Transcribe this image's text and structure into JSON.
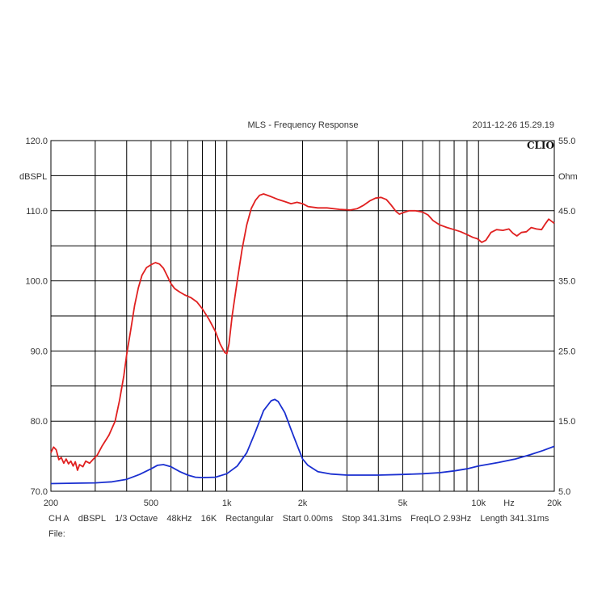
{
  "chart_data": {
    "type": "line",
    "title": "MLS - Frequency Response",
    "timestamp": "2011-12-26 15.29.19",
    "brand": "CLIO",
    "x_scale": "log",
    "xlim": [
      200,
      20000
    ],
    "x_ticks": [
      {
        "value": 200,
        "label": "200"
      },
      {
        "value": 500,
        "label": "500"
      },
      {
        "value": 1000,
        "label": "1k"
      },
      {
        "value": 2000,
        "label": "2k"
      },
      {
        "value": 5000,
        "label": "5k"
      },
      {
        "value": 10000,
        "label": "10k"
      },
      {
        "value": 20000,
        "label": "20k"
      }
    ],
    "x_unit": "Hz",
    "x_grid": [
      300,
      400,
      500,
      600,
      700,
      800,
      900,
      1000,
      2000,
      3000,
      4000,
      5000,
      6000,
      7000,
      8000,
      9000,
      10000
    ],
    "y_left": {
      "label": "dBSPL",
      "lim": [
        70,
        120
      ],
      "ticks": [
        {
          "value": 70,
          "label": "70.0"
        },
        {
          "value": 80,
          "label": "80.0"
        },
        {
          "value": 90,
          "label": "90.0"
        },
        {
          "value": 100,
          "label": "100.0"
        },
        {
          "value": 110,
          "label": "110.0"
        },
        {
          "value": 120,
          "label": "120.0"
        }
      ]
    },
    "y_right": {
      "label": "Ohm",
      "lim": [
        5,
        55
      ],
      "ticks": [
        {
          "value": 5,
          "label": "5.0"
        },
        {
          "value": 15,
          "label": "15.0"
        },
        {
          "value": 25,
          "label": "25.0"
        },
        {
          "value": 35,
          "label": "35.0"
        },
        {
          "value": 45,
          "label": "45.0"
        },
        {
          "value": 55,
          "label": "55.0"
        }
      ]
    },
    "y_grid_minor": 5,
    "grid": true,
    "series": [
      {
        "axis": "left",
        "color": "#e02020",
        "points": [
          [
            200,
            75.5
          ],
          [
            205,
            76.3
          ],
          [
            210,
            75.9
          ],
          [
            215,
            74.5
          ],
          [
            220,
            74.8
          ],
          [
            225,
            74.0
          ],
          [
            230,
            74.6
          ],
          [
            235,
            73.9
          ],
          [
            240,
            74.3
          ],
          [
            245,
            73.6
          ],
          [
            250,
            74.2
          ],
          [
            255,
            73.0
          ],
          [
            260,
            73.8
          ],
          [
            268,
            73.5
          ],
          [
            275,
            74.3
          ],
          [
            285,
            74.0
          ],
          [
            295,
            74.6
          ],
          [
            305,
            75.1
          ],
          [
            320,
            76.5
          ],
          [
            340,
            78.0
          ],
          [
            360,
            80.0
          ],
          [
            375,
            83.0
          ],
          [
            390,
            86.5
          ],
          [
            400,
            89.5
          ],
          [
            415,
            93.0
          ],
          [
            430,
            96.5
          ],
          [
            445,
            99.0
          ],
          [
            460,
            100.8
          ],
          [
            480,
            101.9
          ],
          [
            500,
            102.3
          ],
          [
            520,
            102.6
          ],
          [
            540,
            102.4
          ],
          [
            560,
            101.8
          ],
          [
            580,
            100.7
          ],
          [
            600,
            99.6
          ],
          [
            620,
            98.9
          ],
          [
            650,
            98.4
          ],
          [
            680,
            98.0
          ],
          [
            720,
            97.6
          ],
          [
            760,
            97.0
          ],
          [
            800,
            96.0
          ],
          [
            850,
            94.5
          ],
          [
            900,
            92.8
          ],
          [
            940,
            91.0
          ],
          [
            980,
            89.8
          ],
          [
            1000,
            89.6
          ],
          [
            1020,
            91.0
          ],
          [
            1050,
            95.0
          ],
          [
            1100,
            100.0
          ],
          [
            1150,
            104.5
          ],
          [
            1200,
            108.0
          ],
          [
            1250,
            110.3
          ],
          [
            1300,
            111.5
          ],
          [
            1350,
            112.2
          ],
          [
            1400,
            112.4
          ],
          [
            1500,
            112.0
          ],
          [
            1600,
            111.6
          ],
          [
            1700,
            111.3
          ],
          [
            1800,
            111.0
          ],
          [
            1900,
            111.2
          ],
          [
            2000,
            111.0
          ],
          [
            2100,
            110.6
          ],
          [
            2300,
            110.4
          ],
          [
            2500,
            110.4
          ],
          [
            2800,
            110.2
          ],
          [
            3100,
            110.1
          ],
          [
            3300,
            110.3
          ],
          [
            3500,
            110.8
          ],
          [
            3700,
            111.4
          ],
          [
            3900,
            111.8
          ],
          [
            4100,
            111.9
          ],
          [
            4300,
            111.6
          ],
          [
            4500,
            110.8
          ],
          [
            4700,
            109.9
          ],
          [
            4850,
            109.5
          ],
          [
            5000,
            109.7
          ],
          [
            5300,
            110.0
          ],
          [
            5600,
            110.0
          ],
          [
            6000,
            109.8
          ],
          [
            6300,
            109.4
          ],
          [
            6600,
            108.6
          ],
          [
            7000,
            108.0
          ],
          [
            7500,
            107.6
          ],
          [
            8000,
            107.3
          ],
          [
            8500,
            107.0
          ],
          [
            9000,
            106.6
          ],
          [
            9500,
            106.2
          ],
          [
            9900,
            106.0
          ],
          [
            10300,
            105.5
          ],
          [
            10700,
            105.8
          ],
          [
            11200,
            106.9
          ],
          [
            11800,
            107.3
          ],
          [
            12500,
            107.2
          ],
          [
            13200,
            107.4
          ],
          [
            13700,
            106.8
          ],
          [
            14200,
            106.4
          ],
          [
            14800,
            106.9
          ],
          [
            15500,
            107.0
          ],
          [
            16200,
            107.6
          ],
          [
            17000,
            107.4
          ],
          [
            17800,
            107.3
          ],
          [
            18400,
            108.1
          ],
          [
            19000,
            108.8
          ],
          [
            19500,
            108.5
          ],
          [
            20000,
            108.2
          ]
        ]
      },
      {
        "axis": "right",
        "color": "#1a2fd0",
        "points": [
          [
            200,
            6.1
          ],
          [
            250,
            6.15
          ],
          [
            300,
            6.2
          ],
          [
            350,
            6.35
          ],
          [
            400,
            6.7
          ],
          [
            450,
            7.4
          ],
          [
            500,
            8.2
          ],
          [
            530,
            8.7
          ],
          [
            560,
            8.8
          ],
          [
            600,
            8.5
          ],
          [
            650,
            7.8
          ],
          [
            700,
            7.3
          ],
          [
            750,
            7.0
          ],
          [
            800,
            6.95
          ],
          [
            900,
            7.0
          ],
          [
            1000,
            7.5
          ],
          [
            1100,
            8.6
          ],
          [
            1200,
            10.5
          ],
          [
            1300,
            13.5
          ],
          [
            1400,
            16.5
          ],
          [
            1500,
            17.9
          ],
          [
            1550,
            18.1
          ],
          [
            1600,
            17.8
          ],
          [
            1700,
            16.2
          ],
          [
            1800,
            13.8
          ],
          [
            1900,
            11.6
          ],
          [
            2000,
            9.6
          ],
          [
            2100,
            8.7
          ],
          [
            2300,
            7.8
          ],
          [
            2600,
            7.45
          ],
          [
            3000,
            7.3
          ],
          [
            4000,
            7.3
          ],
          [
            5000,
            7.4
          ],
          [
            6000,
            7.5
          ],
          [
            7000,
            7.65
          ],
          [
            8000,
            7.9
          ],
          [
            9000,
            8.2
          ],
          [
            10000,
            8.6
          ],
          [
            12000,
            9.1
          ],
          [
            14000,
            9.6
          ],
          [
            16000,
            10.2
          ],
          [
            18000,
            10.8
          ],
          [
            20000,
            11.4
          ]
        ]
      }
    ]
  },
  "footer": {
    "items": [
      "CH A",
      "dBSPL",
      "1/3 Octave",
      "48kHz",
      "16K",
      "Rectangular",
      "Start 0.00ms",
      "Stop 341.31ms",
      "FreqLO 2.93Hz",
      "Length 341.31ms"
    ],
    "file_label": "File:"
  }
}
